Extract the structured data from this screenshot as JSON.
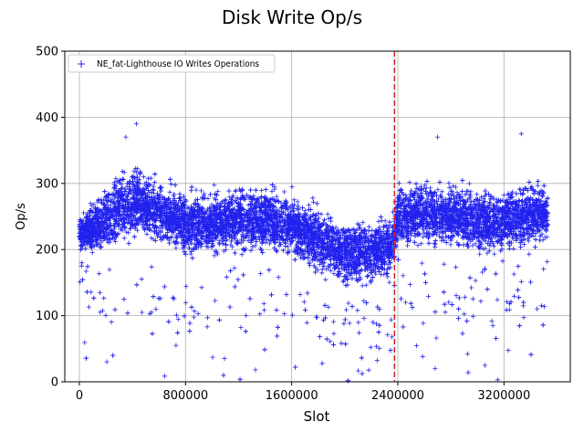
{
  "chart_data": {
    "type": "scatter",
    "title": "Disk Write Op/s",
    "xlabel": "Slot",
    "ylabel": "Op/s",
    "xlim": [
      -110000,
      3700000
    ],
    "ylim": [
      0,
      500
    ],
    "xticks": [
      0,
      800000,
      1600000,
      2400000,
      3200000
    ],
    "xtick_labels": [
      "0",
      "800000",
      "1600000",
      "2400000",
      "3200000"
    ],
    "yticks": [
      0,
      100,
      200,
      300,
      400,
      500
    ],
    "ytick_labels": [
      "0",
      "100",
      "200",
      "300",
      "400",
      "500"
    ],
    "grid": true,
    "legend_position": "top-left",
    "vline": {
      "x": 2375000,
      "color": "#d62728",
      "style": "dashed"
    },
    "series": [
      {
        "name": "NE_fat-Lighthouse IO Writes Operations",
        "marker": "+",
        "color": "#2222ee",
        "profile": {
          "x": [
            0,
            100000,
            200000,
            300000,
            450000,
            600000,
            800000,
            1000000,
            1200000,
            1400000,
            1600000,
            1800000,
            2000000,
            2200000,
            2350000,
            2400000,
            2600000,
            2800000,
            3000000,
            3200000,
            3350000,
            3530000
          ],
          "median": [
            225,
            232,
            245,
            262,
            272,
            255,
            240,
            240,
            245,
            245,
            235,
            215,
            195,
            198,
            205,
            250,
            255,
            250,
            245,
            245,
            250,
            255
          ],
          "spread": [
            25,
            35,
            45,
            50,
            50,
            45,
            45,
            45,
            45,
            45,
            45,
            45,
            45,
            45,
            45,
            40,
            45,
            45,
            45,
            45,
            45,
            40
          ],
          "max": [
            300,
            330,
            370,
            370,
            395,
            355,
            340,
            330,
            345,
            350,
            345,
            345,
            330,
            345,
            345,
            340,
            365,
            370,
            360,
            365,
            375,
            365
          ]
        },
        "approx_points": 9000,
        "notable_points": [
          [
            430000,
            390
          ],
          [
            3330000,
            375
          ],
          [
            2700000,
            370
          ],
          [
            350000,
            370
          ]
        ]
      }
    ]
  }
}
